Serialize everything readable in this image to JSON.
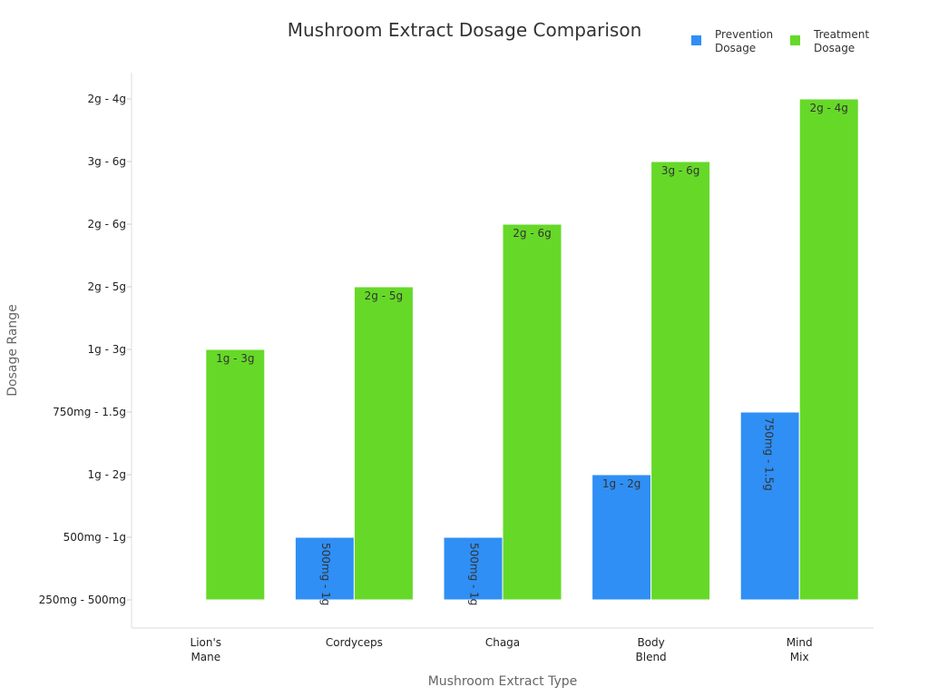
{
  "chart_data": {
    "type": "bar",
    "title": "Mushroom Extract Dosage Comparison",
    "xlabel": "Mushroom Extract Type",
    "ylabel": "Dosage Range",
    "categories": [
      [
        "Lion's",
        "Mane"
      ],
      [
        "Cordyceps"
      ],
      [
        "Chaga"
      ],
      [
        "Body",
        "Blend"
      ],
      [
        "Mind",
        "Mix"
      ]
    ],
    "y_tick_labels": [
      "250mg - 500mg",
      "500mg - 1g",
      "1g - 2g",
      "750mg - 1.5g",
      "1g - 3g",
      "2g - 5g",
      "2g - 6g",
      "3g - 6g",
      "2g - 4g"
    ],
    "ylim": [
      0,
      8
    ],
    "legend_position": "top-right",
    "grid": false,
    "series": [
      {
        "name": "Prevention Dosage",
        "color": "#2f8ff5",
        "values": [
          0,
          1,
          1,
          2,
          3
        ],
        "labels": [
          "",
          "500mg - 1g",
          "500mg - 1g",
          "1g - 2g",
          "750mg - 1.5g"
        ],
        "label_rotated": [
          false,
          true,
          true,
          false,
          true
        ]
      },
      {
        "name": "Treatment Dosage",
        "color": "#66d928",
        "values": [
          4,
          5,
          6,
          7,
          8
        ],
        "labels": [
          "1g - 3g",
          "2g - 5g",
          "2g - 6g",
          "3g - 6g",
          "2g - 4g"
        ],
        "label_rotated": [
          false,
          false,
          false,
          false,
          false
        ]
      }
    ],
    "legend_labels": [
      [
        "Prevention",
        "Dosage"
      ],
      [
        "Treatment",
        "Dosage"
      ]
    ]
  }
}
